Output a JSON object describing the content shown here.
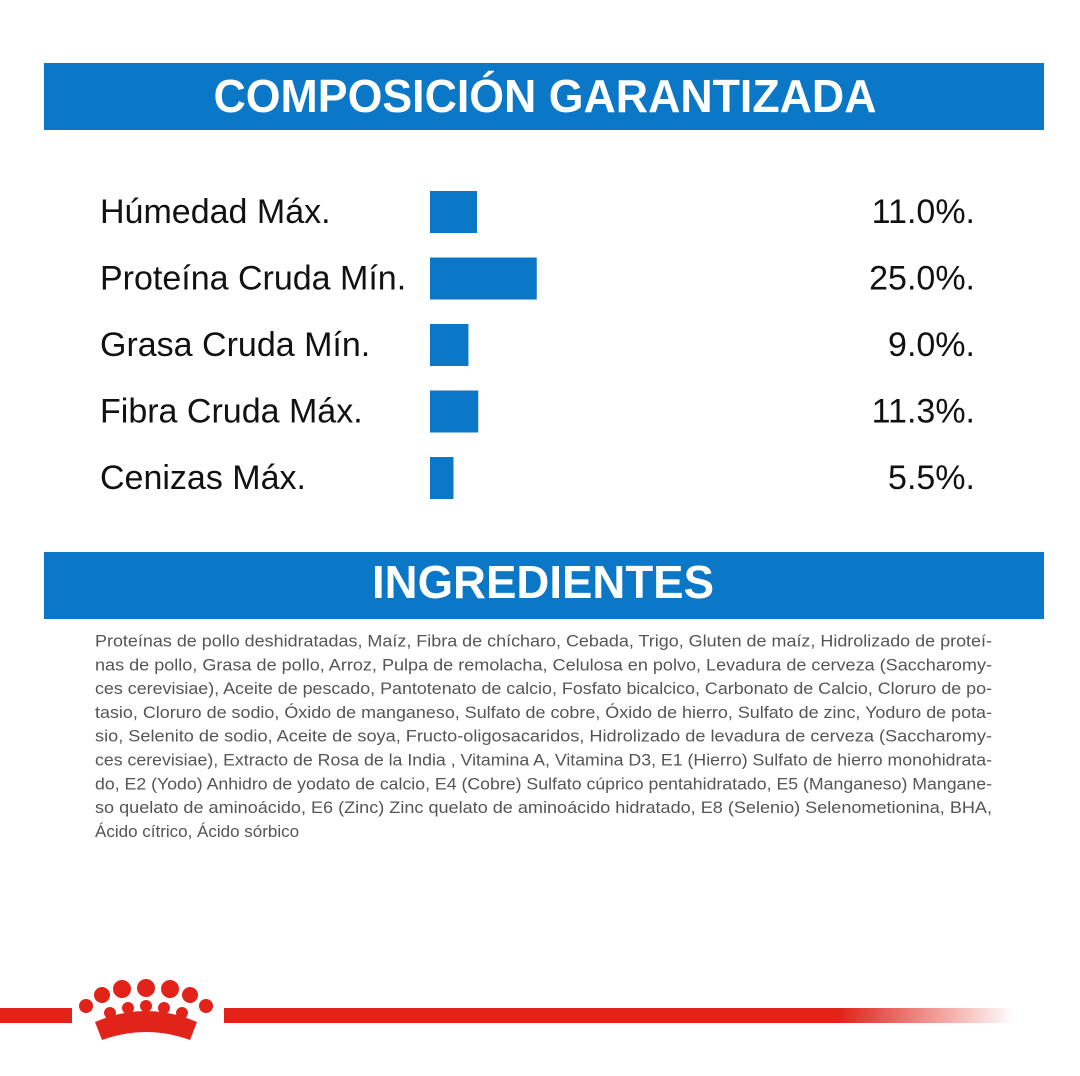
{
  "header": {
    "title": "COMPOSICIÓN GARANTIZADA"
  },
  "chart_data": {
    "type": "bar",
    "orientation": "horizontal",
    "color": "#0a77c7",
    "categories": [
      "Húmedad Máx.",
      "Proteína Cruda Mín.",
      "Grasa Cruda Mín.",
      "Fibra Cruda Máx.",
      "Cenizas Máx."
    ],
    "values": [
      11.0,
      25.0,
      9.0,
      11.3,
      5.5
    ],
    "value_labels": [
      "11.0%.",
      "25.0%.",
      "9.0%.",
      "11.3%.",
      "5.5%."
    ]
  },
  "ingredients": {
    "title": "INGREDIENTES",
    "lines": [
      "Proteínas de pollo deshidratadas, Maíz, Fibra de chícharo, Cebada, Trigo, Gluten de maíz, Hidrolizado de proteí-",
      "nas de pollo, Grasa de pollo, Arroz, Pulpa de remolacha, Celulosa en polvo, Levadura de cerveza (Saccharomy-",
      "ces cerevisiae), Aceite de pescado, Pantotenato de calcio, Fosfato bicalcico, Carbonato de Calcio, Cloruro de po-",
      "tasio, Cloruro de sodio, Óxido de manganeso, Sulfato de cobre, Óxido de hierro, Sulfato de zinc, Yoduro de pota-",
      "sio, Selenito de sodio, Aceite de soya, Fructo-oligosacaridos, Hidrolizado de levadura de cerveza (Saccharomy-",
      "ces cerevisiae), Extracto de Rosa de la India , Vitamina A, Vitamina D3, E1 (Hierro) Sulfato de hierro monohidrata-",
      "do, E2 (Yodo) Anhidro de yodato de calcio, E4 (Cobre) Sulfato cúprico pentahidratado, E5 (Manganeso) Mangane-",
      "so quelato de aminoácido, E6 (Zinc) Zinc quelato de aminoácido hidratado, E8 (Selenio) Selenometionina, BHA,",
      "Ácido cítrico, Ácido sórbico"
    ]
  }
}
